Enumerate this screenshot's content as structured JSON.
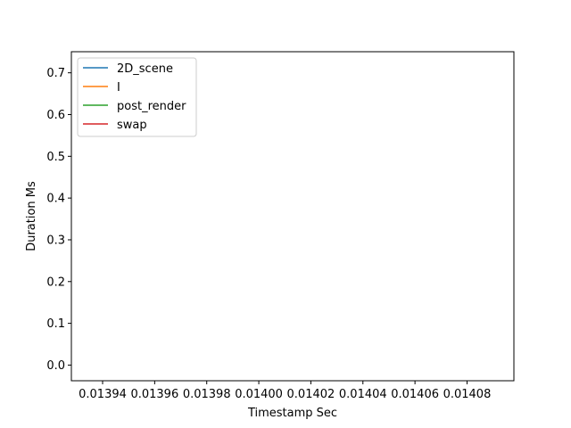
{
  "chart_data": {
    "type": "line",
    "title": "",
    "xlabel": "Timestamp Sec",
    "ylabel": "Duration Ms",
    "xlim": [
      0.013928,
      0.014098
    ],
    "ylim": [
      -0.0375,
      0.7505
    ],
    "x_ticks": [
      {
        "value": 0.01394,
        "label": "0.01394"
      },
      {
        "value": 0.01396,
        "label": "0.01396"
      },
      {
        "value": 0.01398,
        "label": "0.01398"
      },
      {
        "value": 0.014,
        "label": "0.01400"
      },
      {
        "value": 0.01402,
        "label": "0.01402"
      },
      {
        "value": 0.01404,
        "label": "0.01404"
      },
      {
        "value": 0.01406,
        "label": "0.01406"
      },
      {
        "value": 0.01408,
        "label": "0.01408"
      }
    ],
    "y_ticks": [
      {
        "value": 0.0,
        "label": "0.0"
      },
      {
        "value": 0.1,
        "label": "0.1"
      },
      {
        "value": 0.2,
        "label": "0.2"
      },
      {
        "value": 0.3,
        "label": "0.3"
      },
      {
        "value": 0.4,
        "label": "0.4"
      },
      {
        "value": 0.5,
        "label": "0.5"
      },
      {
        "value": 0.6,
        "label": "0.6"
      },
      {
        "value": 0.7,
        "label": "0.7"
      }
    ],
    "grid": false,
    "legend_position": "top-left",
    "series": [
      {
        "name": "2D_scene",
        "color": "#1f77b4",
        "x": [],
        "y": []
      },
      {
        "name": "I",
        "color": "#ff7f0e",
        "x": [],
        "y": []
      },
      {
        "name": "post_render",
        "color": "#2ca02c",
        "x": [],
        "y": []
      },
      {
        "name": "swap",
        "color": "#d62728",
        "x": [],
        "y": []
      }
    ]
  }
}
